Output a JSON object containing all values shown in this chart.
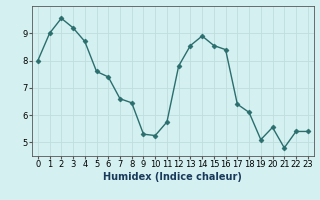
{
  "x": [
    0,
    1,
    2,
    3,
    4,
    5,
    6,
    7,
    8,
    9,
    10,
    11,
    12,
    13,
    14,
    15,
    16,
    17,
    18,
    19,
    20,
    21,
    22,
    23
  ],
  "y": [
    8.0,
    9.0,
    9.55,
    9.2,
    8.7,
    7.6,
    7.4,
    6.6,
    6.45,
    5.3,
    5.25,
    5.75,
    7.8,
    8.55,
    8.9,
    8.55,
    8.4,
    6.4,
    6.1,
    5.1,
    5.55,
    4.8,
    5.4,
    5.4
  ],
  "line_color": "#2a6e6e",
  "marker": "D",
  "marker_size": 2.5,
  "line_width": 1.0,
  "bg_color": "#d4f0f0",
  "grid_color": "#c0dede",
  "xlabel": "Humidex (Indice chaleur)",
  "xlabel_fontsize": 7,
  "tick_fontsize": 6,
  "xlim": [
    -0.5,
    23.5
  ],
  "ylim": [
    4.5,
    10.0
  ],
  "yticks": [
    5,
    6,
    7,
    8,
    9
  ],
  "xticks": [
    0,
    1,
    2,
    3,
    4,
    5,
    6,
    7,
    8,
    9,
    10,
    11,
    12,
    13,
    14,
    15,
    16,
    17,
    18,
    19,
    20,
    21,
    22,
    23
  ]
}
